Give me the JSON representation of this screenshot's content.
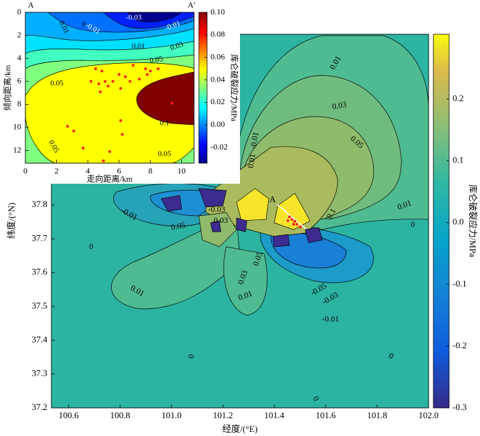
{
  "chart_data": [
    {
      "type": "contour",
      "xlabel": "经度/(°E)",
      "ylabel": "纬度/(°N)",
      "xlim": [
        100.533,
        102.0
      ],
      "xticks": [
        100.6,
        100.8,
        {
          "value": 101,
          "label": "101.0"
        },
        101.2,
        101.4,
        101.6,
        101.8,
        {
          "value": 102,
          "label": "102.0"
        }
      ],
      "ylim": [
        37.2,
        38.305
      ],
      "yticks": [
        37.2,
        37.3,
        37.4,
        37.5,
        37.6,
        37.7,
        37.8
      ],
      "colorbar": {
        "label": "库仑破裂应力/MPa",
        "lim": [
          -0.3,
          0.305
        ],
        "ticks": [
          -0.3,
          -0.2,
          -0.1,
          {
            "value": 0,
            "label": "0.0"
          },
          0.1,
          0.2
        ]
      },
      "contour_labels": [
        0.01,
        0.03,
        0.05,
        0.01,
        0,
        -0.01,
        0.01,
        -0.01,
        0.05,
        0,
        -0.03,
        0.03,
        0.1,
        0.01,
        0.01,
        0,
        0,
        0,
        -0.01,
        -0.03,
        -0.05,
        0.05,
        0.03
      ],
      "profile": {
        "label": "A",
        "x": [
          101.411,
          101.523
        ],
        "y": [
          37.802,
          37.729
        ]
      },
      "events": {
        "color": "#ff2020",
        "x": [
          101.459,
          101.469,
          101.48,
          101.488,
          101.475,
          101.453,
          101.501
        ],
        "y": [
          37.765,
          37.757,
          37.752,
          37.743,
          37.743,
          37.754,
          37.735
        ]
      }
    },
    {
      "type": "contour",
      "xlabel": "走向距离/km",
      "ylabel": "倾向距离/km",
      "xlim": [
        0,
        10.8
      ],
      "xticks": [
        0,
        2,
        4,
        6,
        8,
        10
      ],
      "ylim": [
        0,
        13.1
      ],
      "yticks": [
        0,
        2,
        4,
        6,
        8,
        10,
        12
      ],
      "y_inverted": true,
      "colorbar": {
        "label": "库仑破裂应力/MPa",
        "lim": [
          -0.034,
          0.1
        ],
        "ticks": [
          -0.02,
          {
            "value": 0,
            "label": "0.00"
          },
          0.02,
          0.04,
          0.06,
          0.08,
          {
            "value": 0.1,
            "label": "0.10"
          }
        ]
      },
      "contour_labels": [
        -0.03,
        -0.01,
        -0.01,
        0.01,
        0,
        0.01,
        0.03,
        0.05,
        0.05,
        0.1,
        0.05,
        0.05
      ],
      "profile_labels": [
        "A",
        "A'"
      ],
      "events": {
        "color": "#ff2020",
        "x": [
          4.5,
          4.9,
          6.9,
          7.7,
          8.0,
          8.5,
          6.0,
          6.4,
          5.6,
          5.1,
          4.7,
          5.3,
          6.1,
          4.8,
          6.7,
          7.3,
          7.8,
          4.2,
          2.7,
          3.1,
          3.7,
          5.4,
          5.0,
          6.1,
          6.2,
          9.4
        ],
        "y": [
          4.9,
          5.1,
          4.6,
          4.9,
          5.1,
          4.9,
          5.4,
          5.6,
          6.0,
          6.0,
          6.2,
          6.4,
          6.6,
          6.9,
          6.0,
          5.8,
          5.4,
          6.0,
          9.9,
          10.3,
          11.8,
          12.1,
          12.9,
          9.4,
          10.6,
          7.9
        ]
      }
    }
  ]
}
